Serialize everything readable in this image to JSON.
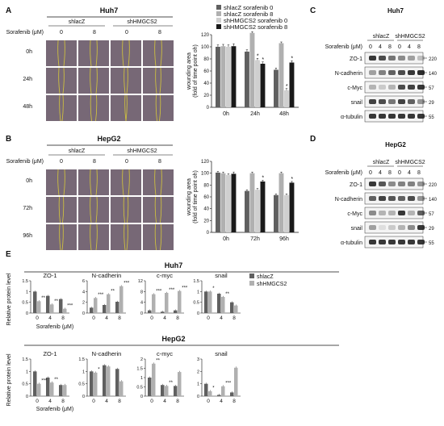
{
  "panelA": {
    "letter": "A",
    "cell_line": "Huh7",
    "treat_label": "Sorafenib (μM)",
    "groups": [
      "shlacZ",
      "shHMGCS2"
    ],
    "doses": [
      "0",
      "8",
      "0",
      "8"
    ],
    "time_rows": [
      "0h",
      "24h",
      "48h"
    ]
  },
  "panelB": {
    "letter": "B",
    "cell_line": "HepG2",
    "treat_label": "Sorafenib (μM)",
    "groups": [
      "shlacZ",
      "shHMGCS2"
    ],
    "doses": [
      "0",
      "8",
      "0",
      "8"
    ],
    "time_rows": [
      "0h",
      "72h",
      "96h"
    ]
  },
  "panelC": {
    "letter": "C",
    "cell_line": "Huh7",
    "groups": [
      "shlacZ",
      "shHMGCS2"
    ],
    "treat_label": "Sorafenib (μM)",
    "doses": [
      "0",
      "4",
      "8",
      "0",
      "4",
      "8"
    ],
    "blots": [
      {
        "label": "ZO-1",
        "kda": "220"
      },
      {
        "label": "N-cadherin",
        "kda": "140"
      },
      {
        "label": "c-Myc",
        "kda": "57"
      },
      {
        "label": "snail",
        "kda": "29"
      },
      {
        "label": "α-tubulin",
        "kda": "55"
      }
    ]
  },
  "panelD": {
    "letter": "D",
    "cell_line": "HepG2",
    "groups": [
      "shlacZ",
      "shHMGCS2"
    ],
    "treat_label": "Sorafenib (μM)",
    "doses": [
      "0",
      "4",
      "8",
      "0",
      "4",
      "8"
    ],
    "blots": [
      {
        "label": "ZO-1",
        "kda": "220"
      },
      {
        "label": "N-cadherin",
        "kda": "140"
      },
      {
        "label": "c-Myc",
        "kda": "57"
      },
      {
        "label": "snail",
        "kda": "29"
      },
      {
        "label": "α-tubulin",
        "kda": "55"
      }
    ]
  },
  "panelE": {
    "letter": "E",
    "ylabel": "Relative protein level",
    "xlabel": "Sorafenib (μM)",
    "title_huh7": "Huh7",
    "title_hepg2": "HepG2",
    "legend": [
      "shlacZ",
      "shHMGCS2"
    ]
  },
  "colors": {
    "black": "#1a1a1a",
    "dark_gray": "#606060",
    "light_gray": "#b0b0b0",
    "silver": "#cfcfcf",
    "wound_bg": "#6d5e6c",
    "wound_line": "#d6c83a",
    "blot_bg": "#f4f4f4",
    "band": "#222222"
  },
  "chart_data": [
    {
      "id": "A_wound",
      "type": "bar",
      "categories": [
        "0h",
        "24h",
        "48h"
      ],
      "ylabel": "wounding area\n(fold of time point oh)",
      "ylim": [
        0,
        120
      ],
      "yticks": [
        0,
        20,
        40,
        60,
        80,
        100,
        120
      ],
      "series": [
        {
          "name": "shlacZ sorafenib 0",
          "color": "#606060",
          "values": [
            100,
            92,
            62
          ],
          "errors": [
            3,
            3,
            3
          ]
        },
        {
          "name": "shlacZ sorafenib 8",
          "color": "#b0b0b0",
          "values": [
            101,
            123,
            106
          ],
          "errors": [
            3,
            2,
            2
          ]
        },
        {
          "name": "shHMGCS2 sorafenib 0",
          "color": "#cfcfcf",
          "values": [
            100,
            78,
            28
          ],
          "errors": [
            3,
            3,
            3
          ]
        },
        {
          "name": "shHMGCS2 sorafenib 8",
          "color": "#1a1a1a",
          "values": [
            101,
            72,
            74
          ],
          "errors": [
            4,
            3,
            3
          ]
        }
      ],
      "annotations": [
        "*",
        "*",
        "*",
        "*"
      ]
    },
    {
      "id": "B_wound",
      "type": "bar",
      "categories": [
        "0h",
        "72h",
        "96h"
      ],
      "ylabel": "wounding area\n(fold of time point oh)",
      "ylim": [
        0,
        120
      ],
      "yticks": [
        0,
        20,
        40,
        60,
        80,
        100,
        120
      ],
      "series": [
        {
          "name": "shlacZ sorafenib 0",
          "color": "#606060",
          "values": [
            101,
            70,
            63
          ],
          "errors": [
            2,
            2,
            2
          ]
        },
        {
          "name": "shlacZ sorafenib 8",
          "color": "#b0b0b0",
          "values": [
            100,
            100,
            100
          ],
          "errors": [
            2,
            2,
            2
          ]
        },
        {
          "name": "shHMGCS2 sorafenib 0",
          "color": "#cfcfcf",
          "values": [
            97,
            72,
            63
          ],
          "errors": [
            2,
            2,
            2
          ]
        },
        {
          "name": "shHMGCS2 sorafenib 8",
          "color": "#1a1a1a",
          "values": [
            99,
            86,
            84
          ],
          "errors": [
            3,
            2,
            2
          ]
        }
      ],
      "annotations": [
        "*",
        "*"
      ]
    },
    {
      "id": "E_huh7_zo1",
      "type": "bar",
      "title": "ZO-1",
      "categories": [
        "0",
        "4",
        "8"
      ],
      "ylim": [
        0,
        1.5
      ],
      "yticks": [
        0,
        0.5,
        1,
        1.5
      ],
      "series": [
        {
          "name": "shlacZ",
          "values": [
            1.0,
            0.8,
            0.65
          ]
        },
        {
          "name": "shHMGCS2",
          "values": [
            0.55,
            0.4,
            0.2
          ]
        }
      ],
      "annotations": [
        "**",
        "**",
        "***"
      ]
    },
    {
      "id": "E_huh7_ncad",
      "type": "bar",
      "title": "N-cadherin",
      "categories": [
        "0",
        "4",
        "8"
      ],
      "ylim": [
        0,
        6
      ],
      "yticks": [
        0,
        2,
        4,
        6
      ],
      "series": [
        {
          "name": "shlacZ",
          "values": [
            1.0,
            1.5,
            2.1
          ]
        },
        {
          "name": "shHMGCS2",
          "values": [
            2.8,
            3.5,
            5.0
          ]
        }
      ],
      "annotations": [
        "***",
        "**",
        "***"
      ]
    },
    {
      "id": "E_huh7_cmyc",
      "type": "bar",
      "title": "c-myc",
      "categories": [
        "0",
        "4",
        "8"
      ],
      "ylim": [
        0,
        12
      ],
      "yticks": [
        0,
        4,
        8,
        12
      ],
      "series": [
        {
          "name": "shlacZ",
          "values": [
            1.0,
            0.5,
            1.0
          ]
        },
        {
          "name": "shHMGCS2",
          "values": [
            7.0,
            7.5,
            8.2
          ]
        }
      ],
      "annotations": [
        "***",
        "***",
        "***"
      ]
    },
    {
      "id": "E_huh7_snail",
      "type": "bar",
      "title": "snail",
      "categories": [
        "0",
        "4",
        "8"
      ],
      "ylim": [
        0,
        1.5
      ],
      "yticks": [
        0,
        0.5,
        1,
        1.5
      ],
      "series": [
        {
          "name": "shlacZ",
          "values": [
            1.0,
            0.9,
            0.5
          ]
        },
        {
          "name": "shHMGCS2",
          "values": [
            1.0,
            0.75,
            0.35
          ]
        }
      ],
      "annotations": [
        "*",
        "**"
      ]
    },
    {
      "id": "E_hepg2_zo1",
      "type": "bar",
      "title": "ZO-1",
      "categories": [
        "0",
        "4",
        "8"
      ],
      "ylim": [
        0,
        1.5
      ],
      "yticks": [
        0,
        0.5,
        1,
        1.5
      ],
      "series": [
        {
          "name": "shlacZ",
          "values": [
            1.0,
            0.75,
            0.45
          ]
        },
        {
          "name": "shHMGCS2",
          "values": [
            0.5,
            0.55,
            0.45
          ]
        }
      ],
      "annotations": [
        "***",
        "**"
      ]
    },
    {
      "id": "E_hepg2_ncad",
      "type": "bar",
      "title": "N-cadherin",
      "categories": [
        "0",
        "4",
        "8"
      ],
      "ylim": [
        0,
        1.5
      ],
      "yticks": [
        0,
        0.5,
        1,
        1.5
      ],
      "series": [
        {
          "name": "shlacZ",
          "values": [
            1.0,
            1.25,
            1.1
          ]
        },
        {
          "name": "shHMGCS2",
          "values": [
            0.95,
            1.2,
            0.6
          ]
        }
      ],
      "annotations": [
        "*"
      ]
    },
    {
      "id": "E_hepg2_cmyc",
      "type": "bar",
      "title": "c-myc",
      "categories": [
        "0",
        "4",
        "8"
      ],
      "ylim": [
        0,
        2
      ],
      "yticks": [
        0,
        0.5,
        1,
        1.5,
        2
      ],
      "series": [
        {
          "name": "shlacZ",
          "values": [
            1.0,
            0.6,
            0.55
          ]
        },
        {
          "name": "shHMGCS2",
          "values": [
            1.75,
            0.55,
            1.3
          ]
        }
      ],
      "annotations": [
        "**",
        "**"
      ]
    },
    {
      "id": "E_hepg2_snail",
      "type": "bar",
      "title": "snail",
      "categories": [
        "0",
        "4",
        "8"
      ],
      "ylim": [
        0,
        3
      ],
      "yticks": [
        0,
        1,
        2,
        3
      ],
      "series": [
        {
          "name": "shlacZ",
          "values": [
            1.0,
            0.1,
            0.3
          ]
        },
        {
          "name": "shHMGCS2",
          "values": [
            0.4,
            0.8,
            2.3
          ]
        }
      ],
      "annotations": [
        "*",
        "***"
      ]
    }
  ]
}
